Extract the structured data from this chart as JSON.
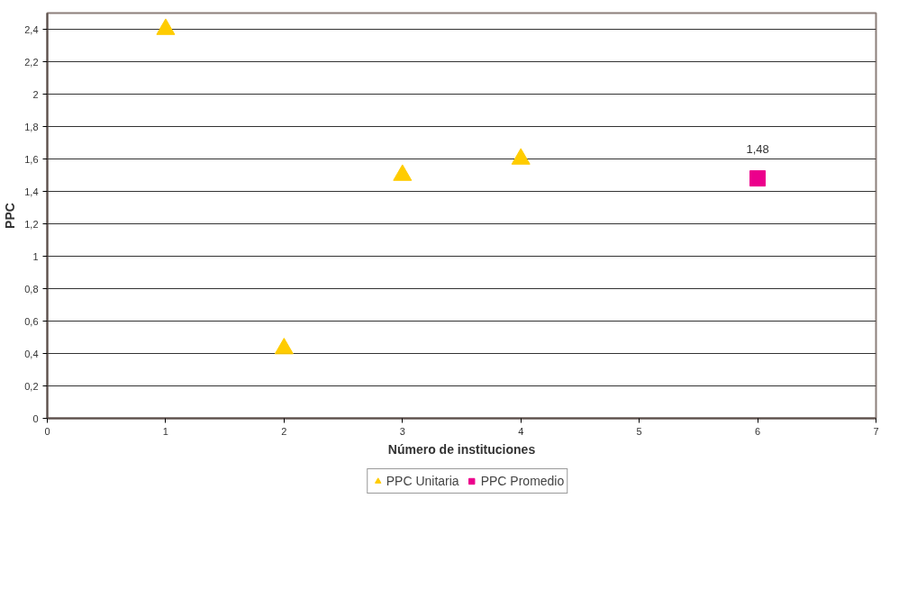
{
  "chart_data": {
    "type": "scatter",
    "xlabel": "Número de instituciones",
    "ylabel": "PPC",
    "xlim": [
      0,
      7
    ],
    "xticks": [
      0,
      1,
      2,
      3,
      4,
      5,
      6,
      7
    ],
    "ylim": [
      0,
      2.5
    ],
    "yticks": [
      0,
      {
        "value": 0.2,
        "label": "0,2"
      },
      {
        "value": 0.4,
        "label": "0,4"
      },
      {
        "value": 0.6,
        "label": "0,6"
      },
      {
        "value": 0.8,
        "label": "0,8"
      },
      1,
      {
        "value": 1.2,
        "label": "1,2"
      },
      {
        "value": 1.4,
        "label": "1,4"
      },
      {
        "value": 1.6,
        "label": "1,6"
      },
      {
        "value": 1.8,
        "label": "1,8"
      },
      2,
      {
        "value": 2.2,
        "label": "2,2"
      },
      {
        "value": 2.4,
        "label": "2,4"
      }
    ],
    "grid": "y",
    "legend": "bottom",
    "series": [
      {
        "name": "PPC Unitaria",
        "color": "#ffcc00",
        "marker": "triangle",
        "x": [
          1,
          2,
          3,
          4
        ],
        "values": [
          2.4,
          0.43,
          1.5,
          1.6
        ]
      },
      {
        "name": "PPC Promedio",
        "color": "#ec008c",
        "marker": "square",
        "x": [
          6
        ],
        "values": [
          1.48
        ],
        "value_labels": [
          "1,48"
        ]
      }
    ]
  }
}
